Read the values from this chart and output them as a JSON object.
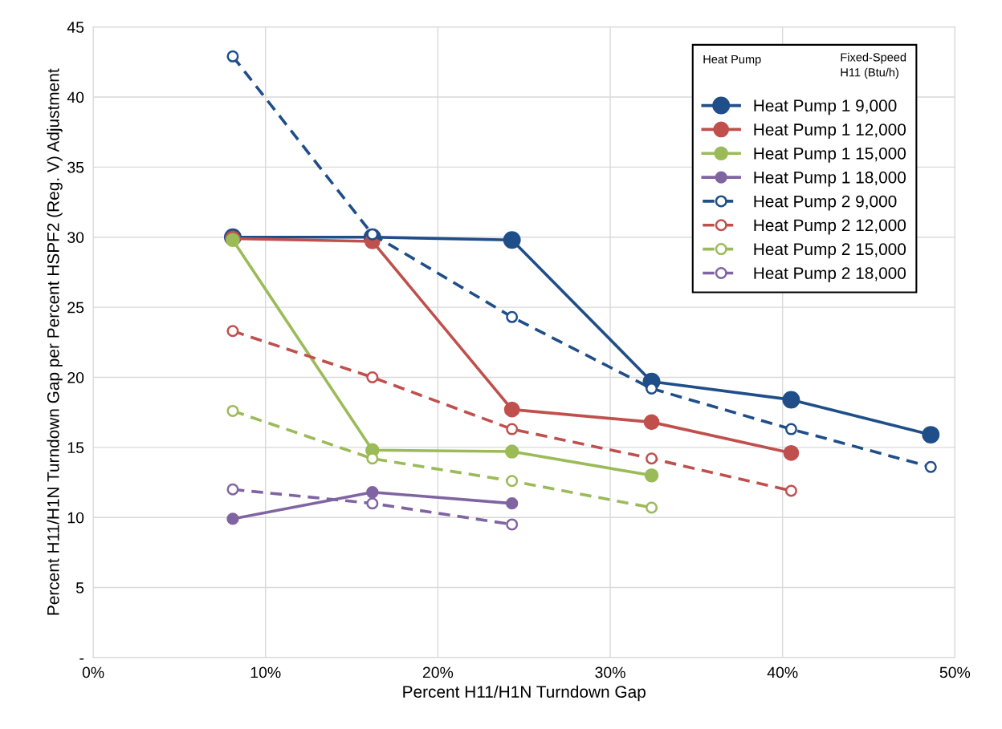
{
  "chart_data": {
    "type": "line",
    "xlabel": "Percent H11/H1N Turndown Gap",
    "ylabel": "Percent H11/H1N Turndown Gap per Percent HSPF2 (Reg. V) Adjustment",
    "legend_title": "Heat Pump",
    "annotations": [
      "Fixed-Speed\nH11 (Btu/h)"
    ],
    "xlim": [
      0,
      50
    ],
    "xticks": [
      {
        "value": 0,
        "label": "0%"
      },
      {
        "value": 10,
        "label": "10%"
      },
      {
        "value": 20,
        "label": "20%"
      },
      {
        "value": 30,
        "label": "30%"
      },
      {
        "value": 40,
        "label": "40%"
      },
      {
        "value": 50,
        "label": "50%"
      }
    ],
    "ylim": [
      0,
      45
    ],
    "yticks": [
      {
        "value": 0,
        "label": "-"
      },
      5,
      10,
      15,
      20,
      25,
      30,
      35,
      40,
      45
    ],
    "grid": true,
    "legend": "top right",
    "series": [
      {
        "name": "Heat Pump 1 9,000",
        "color": "#1f4e89",
        "marker": "circle",
        "line_style": "solid",
        "x": [
          8.1,
          16.2,
          24.3,
          32.4,
          40.5,
          48.6
        ],
        "values": [
          30.0,
          30.0,
          29.8,
          19.7,
          18.4,
          15.9
        ]
      },
      {
        "name": "Heat Pump 1 12,000",
        "color": "#c0504d",
        "marker": "circle",
        "line_style": "solid",
        "x": [
          8.1,
          16.2,
          24.3,
          32.4,
          40.5
        ],
        "values": [
          29.9,
          29.7,
          17.7,
          16.8,
          14.6
        ]
      },
      {
        "name": "Heat Pump 1 15,000",
        "color": "#9bbb59",
        "marker": "circle",
        "line_style": "solid",
        "x": [
          8.1,
          16.2,
          24.3,
          32.4
        ],
        "values": [
          29.8,
          14.8,
          14.7,
          13.0
        ]
      },
      {
        "name": "Heat Pump 1 18,000",
        "color": "#8064a2",
        "marker": "circle",
        "line_style": "solid",
        "x": [
          8.1,
          16.2,
          24.3
        ],
        "values": [
          9.9,
          11.8,
          11.0
        ]
      },
      {
        "name": "Heat Pump 2 9,000",
        "color": "#1f4e89",
        "marker": "open circle",
        "line_style": "dashed",
        "x": [
          8.1,
          16.2,
          24.3,
          32.4,
          40.5,
          48.6
        ],
        "values": [
          42.9,
          30.2,
          24.3,
          19.2,
          16.3,
          13.6
        ]
      },
      {
        "name": "Heat Pump 2 12,000",
        "color": "#c0504d",
        "marker": "open circle",
        "line_style": "dashed",
        "x": [
          8.1,
          16.2,
          24.3,
          32.4,
          40.5
        ],
        "values": [
          23.3,
          20.0,
          16.3,
          14.2,
          11.9
        ]
      },
      {
        "name": "Heat Pump 2 15,000",
        "color": "#9bbb59",
        "marker": "open circle",
        "line_style": "dashed",
        "x": [
          8.1,
          16.2,
          24.3,
          32.4
        ],
        "values": [
          17.6,
          14.2,
          12.6,
          10.7
        ]
      },
      {
        "name": "Heat Pump 2 18,000",
        "color": "#8064a2",
        "marker": "open circle",
        "line_style": "dashed",
        "x": [
          8.1,
          16.2,
          24.3
        ],
        "values": [
          12.0,
          11.0,
          9.5
        ]
      }
    ]
  }
}
